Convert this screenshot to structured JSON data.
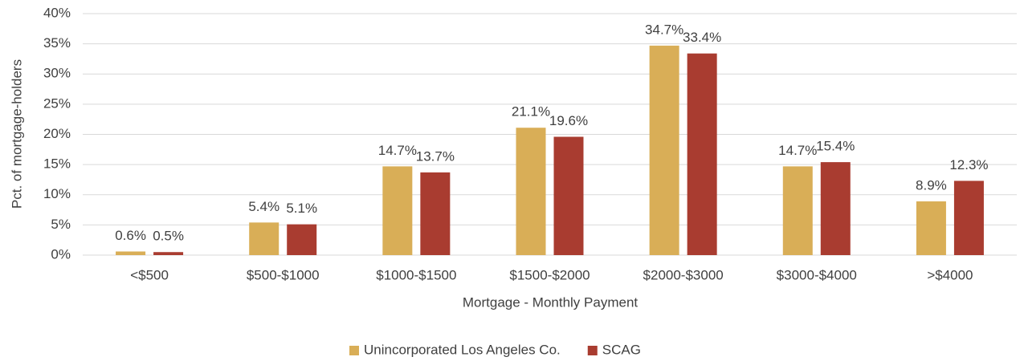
{
  "chart_data": {
    "type": "bar",
    "x_label": "Mortgage - Monthly Payment",
    "y_label": "Pct. of mortgage-holders",
    "categories": [
      "<$500",
      "$500-$1000",
      "$1000-$1500",
      "$1500-$2000",
      "$2000-$3000",
      "$3000-$4000",
      ">$4000"
    ],
    "series": [
      {
        "name": "Unincorporated Los Angeles Co.",
        "color": "#d9ae57",
        "values": [
          0.6,
          5.4,
          14.7,
          21.1,
          34.7,
          14.7,
          8.9
        ],
        "value_labels": [
          "0.6%",
          "5.4%",
          "14.7%",
          "21.1%",
          "34.7%",
          "14.7%",
          "8.9%"
        ]
      },
      {
        "name": "SCAG",
        "color": "#a93c30",
        "values": [
          0.5,
          5.1,
          13.7,
          19.6,
          33.4,
          15.4,
          12.3
        ],
        "value_labels": [
          "0.5%",
          "5.1%",
          "13.7%",
          "19.6%",
          "33.4%",
          "15.4%",
          "12.3%"
        ]
      }
    ],
    "ylim": [
      0,
      40
    ],
    "yticks": [
      {
        "value": 0,
        "label": "0%"
      },
      {
        "value": 5,
        "label": "5%"
      },
      {
        "value": 10,
        "label": "10%"
      },
      {
        "value": 15,
        "label": "15%"
      },
      {
        "value": 20,
        "label": "20%"
      },
      {
        "value": 25,
        "label": "25%"
      },
      {
        "value": 30,
        "label": "30%"
      },
      {
        "value": 35,
        "label": "35%"
      },
      {
        "value": 40,
        "label": "40%"
      }
    ],
    "grid": true,
    "legend": "bottom"
  }
}
